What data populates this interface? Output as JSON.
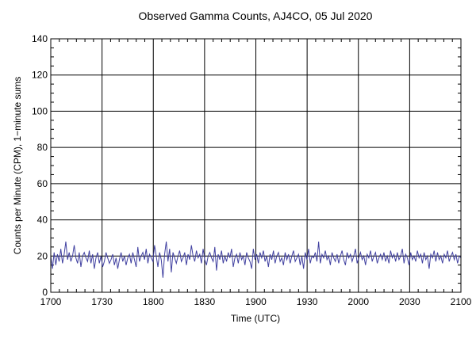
{
  "chart_data": {
    "type": "line",
    "title": "Observed Gamma Counts, AJ4CO, 05 Jul 2020",
    "xlabel": "Time (UTC)",
    "ylabel": "Counts per Minute (CPM), 1−minute sums",
    "xlim": [
      0,
      240
    ],
    "ylim": [
      0,
      140
    ],
    "x_tick_labels": [
      "1700",
      "1730",
      "1800",
      "1830",
      "1900",
      "1930",
      "2000",
      "2030",
      "2100"
    ],
    "y_tick_labels": [
      "0",
      "20",
      "40",
      "60",
      "80",
      "100",
      "120",
      "140"
    ],
    "grid": true,
    "series_color": "#4040a0",
    "series": [
      {
        "values": [
          20,
          13,
          22,
          15,
          21,
          17,
          24,
          16,
          21,
          28,
          18,
          22,
          17,
          20,
          26,
          19,
          16,
          22,
          14,
          20,
          22,
          19,
          17,
          23,
          16,
          21,
          13,
          19,
          22,
          16,
          20,
          14,
          17,
          22,
          19,
          16,
          18,
          21,
          15,
          19,
          13,
          18,
          22,
          17,
          20,
          15,
          19,
          21,
          16,
          22,
          18,
          14,
          25,
          17,
          20,
          22,
          18,
          24,
          16,
          21,
          19,
          17,
          26,
          20,
          14,
          22,
          18,
          8,
          21,
          28,
          17,
          24,
          11,
          22,
          19,
          16,
          20,
          23,
          17,
          19,
          22,
          15,
          21,
          18,
          26,
          20,
          17,
          23,
          19,
          21,
          16,
          24,
          18,
          15,
          20,
          22,
          19,
          17,
          25,
          12,
          21,
          18,
          23,
          16,
          20,
          17,
          22,
          19,
          24,
          14,
          19,
          21,
          16,
          22,
          18,
          20,
          15,
          22,
          19,
          17,
          13,
          24,
          18,
          21,
          16,
          22,
          19,
          23,
          17,
          20,
          14,
          21,
          18,
          23,
          16,
          20,
          22,
          17,
          19,
          15,
          22,
          18,
          21,
          16,
          20,
          23,
          17,
          19,
          21,
          15,
          20,
          13,
          22,
          18,
          24,
          16,
          20,
          19,
          22,
          17,
          28,
          16,
          21,
          19,
          23,
          18,
          20,
          15,
          22,
          19,
          17,
          21,
          16,
          20,
          23,
          18,
          15,
          22,
          19,
          21,
          17,
          20,
          24,
          16,
          19,
          22,
          18,
          20,
          15,
          21,
          19,
          23,
          17,
          20,
          22,
          16,
          19,
          21,
          18,
          22,
          17,
          20,
          16,
          23,
          19,
          21,
          17,
          22,
          18,
          20,
          24,
          16,
          21,
          19,
          15,
          22,
          18,
          20,
          17,
          23,
          19,
          21,
          16,
          22,
          18,
          20,
          13,
          21,
          19,
          23,
          17,
          22,
          18,
          20,
          16,
          21,
          19,
          23,
          17,
          20,
          22,
          18,
          21,
          16,
          20,
          19
        ]
      }
    ]
  }
}
